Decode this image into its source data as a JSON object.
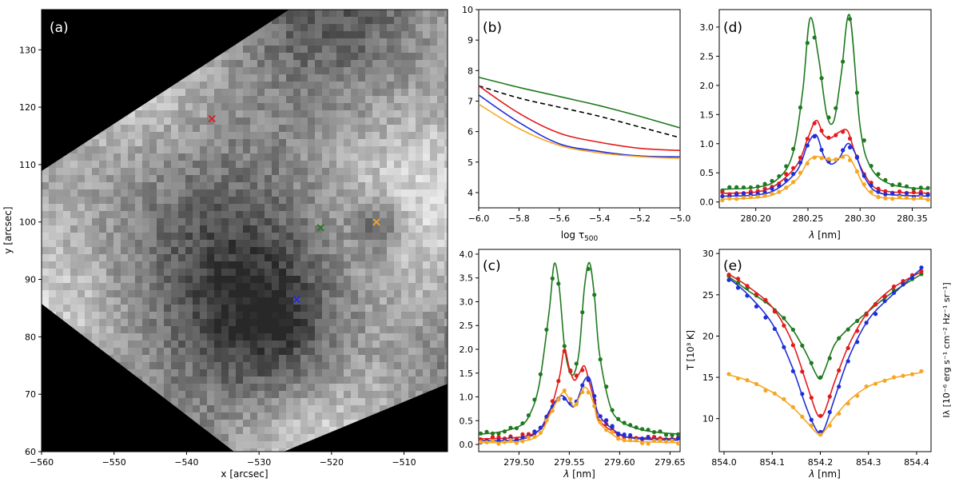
{
  "chart_data": [
    {
      "type": "heatmap",
      "panel": "(a)",
      "xlabel": "x [arcsec]",
      "ylabel": "y [arcsec]",
      "xlim": [
        -560,
        -504
      ],
      "ylim": [
        60,
        137
      ],
      "xticks": [
        -560,
        -550,
        -540,
        -530,
        -520,
        -510
      ],
      "yticks": [
        60,
        70,
        80,
        90,
        100,
        110,
        120,
        130
      ],
      "markers": [
        {
          "name": "red",
          "x": -536.5,
          "y": 118,
          "color": "#e31a1c"
        },
        {
          "name": "green",
          "x": -521.5,
          "y": 99,
          "color": "#1f7a1f"
        },
        {
          "name": "orange",
          "x": -513.8,
          "y": 100,
          "color": "#f5a623"
        },
        {
          "name": "blue",
          "x": -524.8,
          "y": 86.5,
          "color": "#1f2ed8"
        }
      ]
    },
    {
      "type": "line",
      "panel": "(b)",
      "xlabel": "log τ500",
      "xlabel_base": "log τ",
      "xlabel_sub": "500",
      "ylabel": "",
      "xlim": [
        -6.0,
        -5.0
      ],
      "ylim": [
        3.5,
        10
      ],
      "xticks": [
        -6.0,
        -5.8,
        -5.6,
        -5.4,
        -5.2,
        -5.0
      ],
      "xticklabels": [
        "−6.0",
        "−5.8",
        "−5.6",
        "−5.4",
        "−5.2",
        "−5.0"
      ],
      "yticks": [
        4,
        5,
        6,
        7,
        8,
        9,
        10
      ],
      "series": [
        {
          "name": "green",
          "color": "#1f7a1f",
          "dash": false,
          "x": [
            -6.0,
            -5.8,
            -5.6,
            -5.4,
            -5.2,
            -5.0
          ],
          "y": [
            7.78,
            7.45,
            7.15,
            6.85,
            6.5,
            6.12
          ]
        },
        {
          "name": "black-dashed",
          "color": "#000000",
          "dash": true,
          "x": [
            -6.0,
            -5.8,
            -5.6,
            -5.4,
            -5.2,
            -5.0
          ],
          "y": [
            7.5,
            7.1,
            6.8,
            6.5,
            6.15,
            5.8
          ]
        },
        {
          "name": "red",
          "color": "#e31a1c",
          "dash": false,
          "x": [
            -6.0,
            -5.8,
            -5.6,
            -5.4,
            -5.2,
            -5.0
          ],
          "y": [
            7.5,
            6.6,
            5.95,
            5.65,
            5.45,
            5.38
          ]
        },
        {
          "name": "blue",
          "color": "#1f2ed8",
          "dash": false,
          "x": [
            -6.0,
            -5.8,
            -5.6,
            -5.4,
            -5.2,
            -5.0
          ],
          "y": [
            7.2,
            6.3,
            5.6,
            5.35,
            5.2,
            5.17
          ]
        },
        {
          "name": "orange",
          "color": "#f5a623",
          "dash": false,
          "x": [
            -6.0,
            -5.8,
            -5.6,
            -5.4,
            -5.2,
            -5.0
          ],
          "y": [
            6.9,
            6.1,
            5.55,
            5.3,
            5.18,
            5.12
          ]
        }
      ]
    },
    {
      "type": "line",
      "panel": "(c)",
      "xlabel": "λ [nm]",
      "xlabel_var": "λ",
      "xlabel_unit": " [nm]",
      "ylabel": "",
      "xlim": [
        279.46,
        279.66
      ],
      "ylim": [
        -0.15,
        4.1
      ],
      "xticks": [
        279.5,
        279.55,
        279.6,
        279.65
      ],
      "xticklabels": [
        "279.50",
        "279.55",
        "279.60",
        "279.65"
      ],
      "yticks": [
        0.0,
        0.5,
        1.0,
        1.5,
        2.0,
        2.5,
        3.0,
        3.5,
        4.0
      ],
      "yticklabels": [
        "0.0",
        "0.5",
        "1.0",
        "1.5",
        "2.0",
        "2.5",
        "3.0",
        "3.5",
        "4.0"
      ],
      "series": [
        {
          "name": "green",
          "color": "#1f7a1f",
          "x": [
            279.462,
            279.48,
            279.5,
            279.51,
            279.52,
            279.53,
            279.535,
            279.54,
            279.545,
            279.55,
            279.555,
            279.56,
            279.565,
            279.57,
            279.575,
            279.58,
            279.59,
            279.6,
            279.62,
            279.64,
            279.658
          ],
          "y": [
            0.22,
            0.26,
            0.38,
            0.6,
            1.25,
            2.8,
            3.8,
            3.3,
            2.1,
            1.55,
            1.5,
            2.0,
            3.3,
            3.82,
            3.1,
            1.9,
            0.85,
            0.5,
            0.32,
            0.25,
            0.22
          ]
        },
        {
          "name": "red",
          "color": "#e31a1c",
          "x": [
            279.462,
            279.5,
            279.52,
            279.53,
            279.54,
            279.545,
            279.55,
            279.555,
            279.56,
            279.565,
            279.57,
            279.575,
            279.58,
            279.6,
            279.62,
            279.658
          ],
          "y": [
            0.12,
            0.15,
            0.3,
            0.65,
            1.4,
            2.0,
            1.6,
            1.35,
            1.5,
            1.65,
            1.3,
            0.9,
            0.5,
            0.2,
            0.14,
            0.12
          ]
        },
        {
          "name": "blue",
          "color": "#1f2ed8",
          "x": [
            279.462,
            279.5,
            279.52,
            279.53,
            279.54,
            279.545,
            279.55,
            279.555,
            279.56,
            279.565,
            279.57,
            279.575,
            279.58,
            279.6,
            279.62,
            279.658
          ],
          "y": [
            0.08,
            0.1,
            0.3,
            0.7,
            1.0,
            1.0,
            0.85,
            0.8,
            1.05,
            1.35,
            1.4,
            1.0,
            0.6,
            0.22,
            0.12,
            0.09
          ]
        },
        {
          "name": "orange",
          "color": "#f5a623",
          "x": [
            279.462,
            279.5,
            279.52,
            279.53,
            279.54,
            279.545,
            279.55,
            279.555,
            279.56,
            279.565,
            279.57,
            279.575,
            279.58,
            279.6,
            279.62,
            279.658
          ],
          "y": [
            0.04,
            0.06,
            0.2,
            0.6,
            1.0,
            1.1,
            0.95,
            0.8,
            1.0,
            1.2,
            1.1,
            0.8,
            0.45,
            0.12,
            0.06,
            0.04
          ]
        }
      ]
    },
    {
      "type": "line",
      "panel": "(d)",
      "xlabel": "λ [nm]",
      "xlabel_var": "λ",
      "xlabel_unit": " [nm]",
      "ylabel": "",
      "xlim": [
        280.165,
        280.368
      ],
      "ylim": [
        -0.1,
        3.3
      ],
      "xticks": [
        280.2,
        280.25,
        280.3,
        280.35
      ],
      "xticklabels": [
        "280.20",
        "280.25",
        "280.30",
        "280.35"
      ],
      "yticks": [
        0.0,
        0.5,
        1.0,
        1.5,
        2.0,
        2.5,
        3.0
      ],
      "yticklabels": [
        "0.0",
        "0.5",
        "1.0",
        "1.5",
        "2.0",
        "2.5",
        "3.0"
      ],
      "series": [
        {
          "name": "green",
          "color": "#1f7a1f",
          "x": [
            280.168,
            280.2,
            280.22,
            280.235,
            280.245,
            280.252,
            280.26,
            280.268,
            280.275,
            280.282,
            280.29,
            280.3,
            280.31,
            280.33,
            280.365
          ],
          "y": [
            0.22,
            0.25,
            0.38,
            0.8,
            1.9,
            3.15,
            2.5,
            1.5,
            1.4,
            2.2,
            3.2,
            1.3,
            0.6,
            0.3,
            0.22
          ]
        },
        {
          "name": "red",
          "color": "#e31a1c",
          "x": [
            280.168,
            280.2,
            280.22,
            280.24,
            280.25,
            280.258,
            280.265,
            280.272,
            280.28,
            280.288,
            280.295,
            280.305,
            280.32,
            280.365
          ],
          "y": [
            0.15,
            0.17,
            0.3,
            0.65,
            1.1,
            1.4,
            1.15,
            1.1,
            1.2,
            1.22,
            0.85,
            0.45,
            0.2,
            0.15
          ]
        },
        {
          "name": "blue",
          "color": "#1f2ed8",
          "x": [
            280.168,
            280.2,
            280.22,
            280.24,
            280.25,
            280.258,
            280.265,
            280.272,
            280.28,
            280.288,
            280.295,
            280.305,
            280.32,
            280.365
          ],
          "y": [
            0.1,
            0.12,
            0.22,
            0.55,
            1.0,
            1.15,
            0.8,
            0.65,
            0.75,
            1.0,
            0.85,
            0.4,
            0.15,
            0.1
          ]
        },
        {
          "name": "orange",
          "color": "#f5a623",
          "x": [
            280.168,
            280.2,
            280.22,
            280.24,
            280.25,
            280.258,
            280.265,
            280.272,
            280.28,
            280.288,
            280.295,
            280.305,
            280.32,
            280.365
          ],
          "y": [
            0.05,
            0.07,
            0.15,
            0.4,
            0.7,
            0.78,
            0.75,
            0.72,
            0.75,
            0.8,
            0.6,
            0.25,
            0.08,
            0.05
          ]
        }
      ]
    },
    {
      "type": "line",
      "panel": "(e)",
      "xlabel": "λ [nm]",
      "xlabel_var": "λ",
      "xlabel_unit": " [nm]",
      "ylabel": "T [10³ K]",
      "ylabel_right": "Iλ [10⁻⁶ erg s⁻¹ cm⁻² Hz⁻¹ sr⁻¹]",
      "xlim": [
        853.99,
        854.43
      ],
      "ylim": [
        6,
        30.5
      ],
      "xticks": [
        854.0,
        854.1,
        854.2,
        854.3,
        854.4
      ],
      "xticklabels": [
        "854.0",
        "854.1",
        "854.2",
        "854.3",
        "854.4"
      ],
      "yticks": [
        10,
        15,
        20,
        25,
        30
      ],
      "series": [
        {
          "name": "green",
          "color": "#1f7a1f",
          "x": [
            854.01,
            854.05,
            854.1,
            854.14,
            854.17,
            854.19,
            854.2,
            854.21,
            854.23,
            854.26,
            854.3,
            854.35,
            854.41
          ],
          "y": [
            27.2,
            25.5,
            23.5,
            21.0,
            18.0,
            15.5,
            14.8,
            16.0,
            19.0,
            21.0,
            23.0,
            25.3,
            27.5
          ]
        },
        {
          "name": "red",
          "color": "#e31a1c",
          "x": [
            854.01,
            854.05,
            854.1,
            854.14,
            854.17,
            854.19,
            854.2,
            854.21,
            854.23,
            854.26,
            854.3,
            854.35,
            854.41
          ],
          "y": [
            27.5,
            26.0,
            23.5,
            19.5,
            14.5,
            11.0,
            10.2,
            11.0,
            14.5,
            19.0,
            23.0,
            25.8,
            27.8
          ]
        },
        {
          "name": "blue",
          "color": "#1f2ed8",
          "x": [
            854.01,
            854.05,
            854.1,
            854.14,
            854.17,
            854.19,
            854.2,
            854.21,
            854.23,
            854.26,
            854.3,
            854.35,
            854.41
          ],
          "y": [
            27.0,
            25.0,
            21.5,
            16.5,
            11.5,
            8.8,
            8.3,
            9.0,
            12.5,
            17.5,
            22.0,
            25.0,
            28.2
          ]
        },
        {
          "name": "orange",
          "color": "#f5a623",
          "x": [
            854.01,
            854.05,
            854.1,
            854.14,
            854.17,
            854.19,
            854.2,
            854.21,
            854.23,
            854.26,
            854.3,
            854.35,
            854.41
          ],
          "y": [
            15.3,
            14.6,
            13.2,
            11.5,
            9.7,
            8.4,
            8.0,
            8.6,
            10.2,
            12.2,
            13.9,
            14.9,
            15.6
          ]
        }
      ]
    }
  ]
}
